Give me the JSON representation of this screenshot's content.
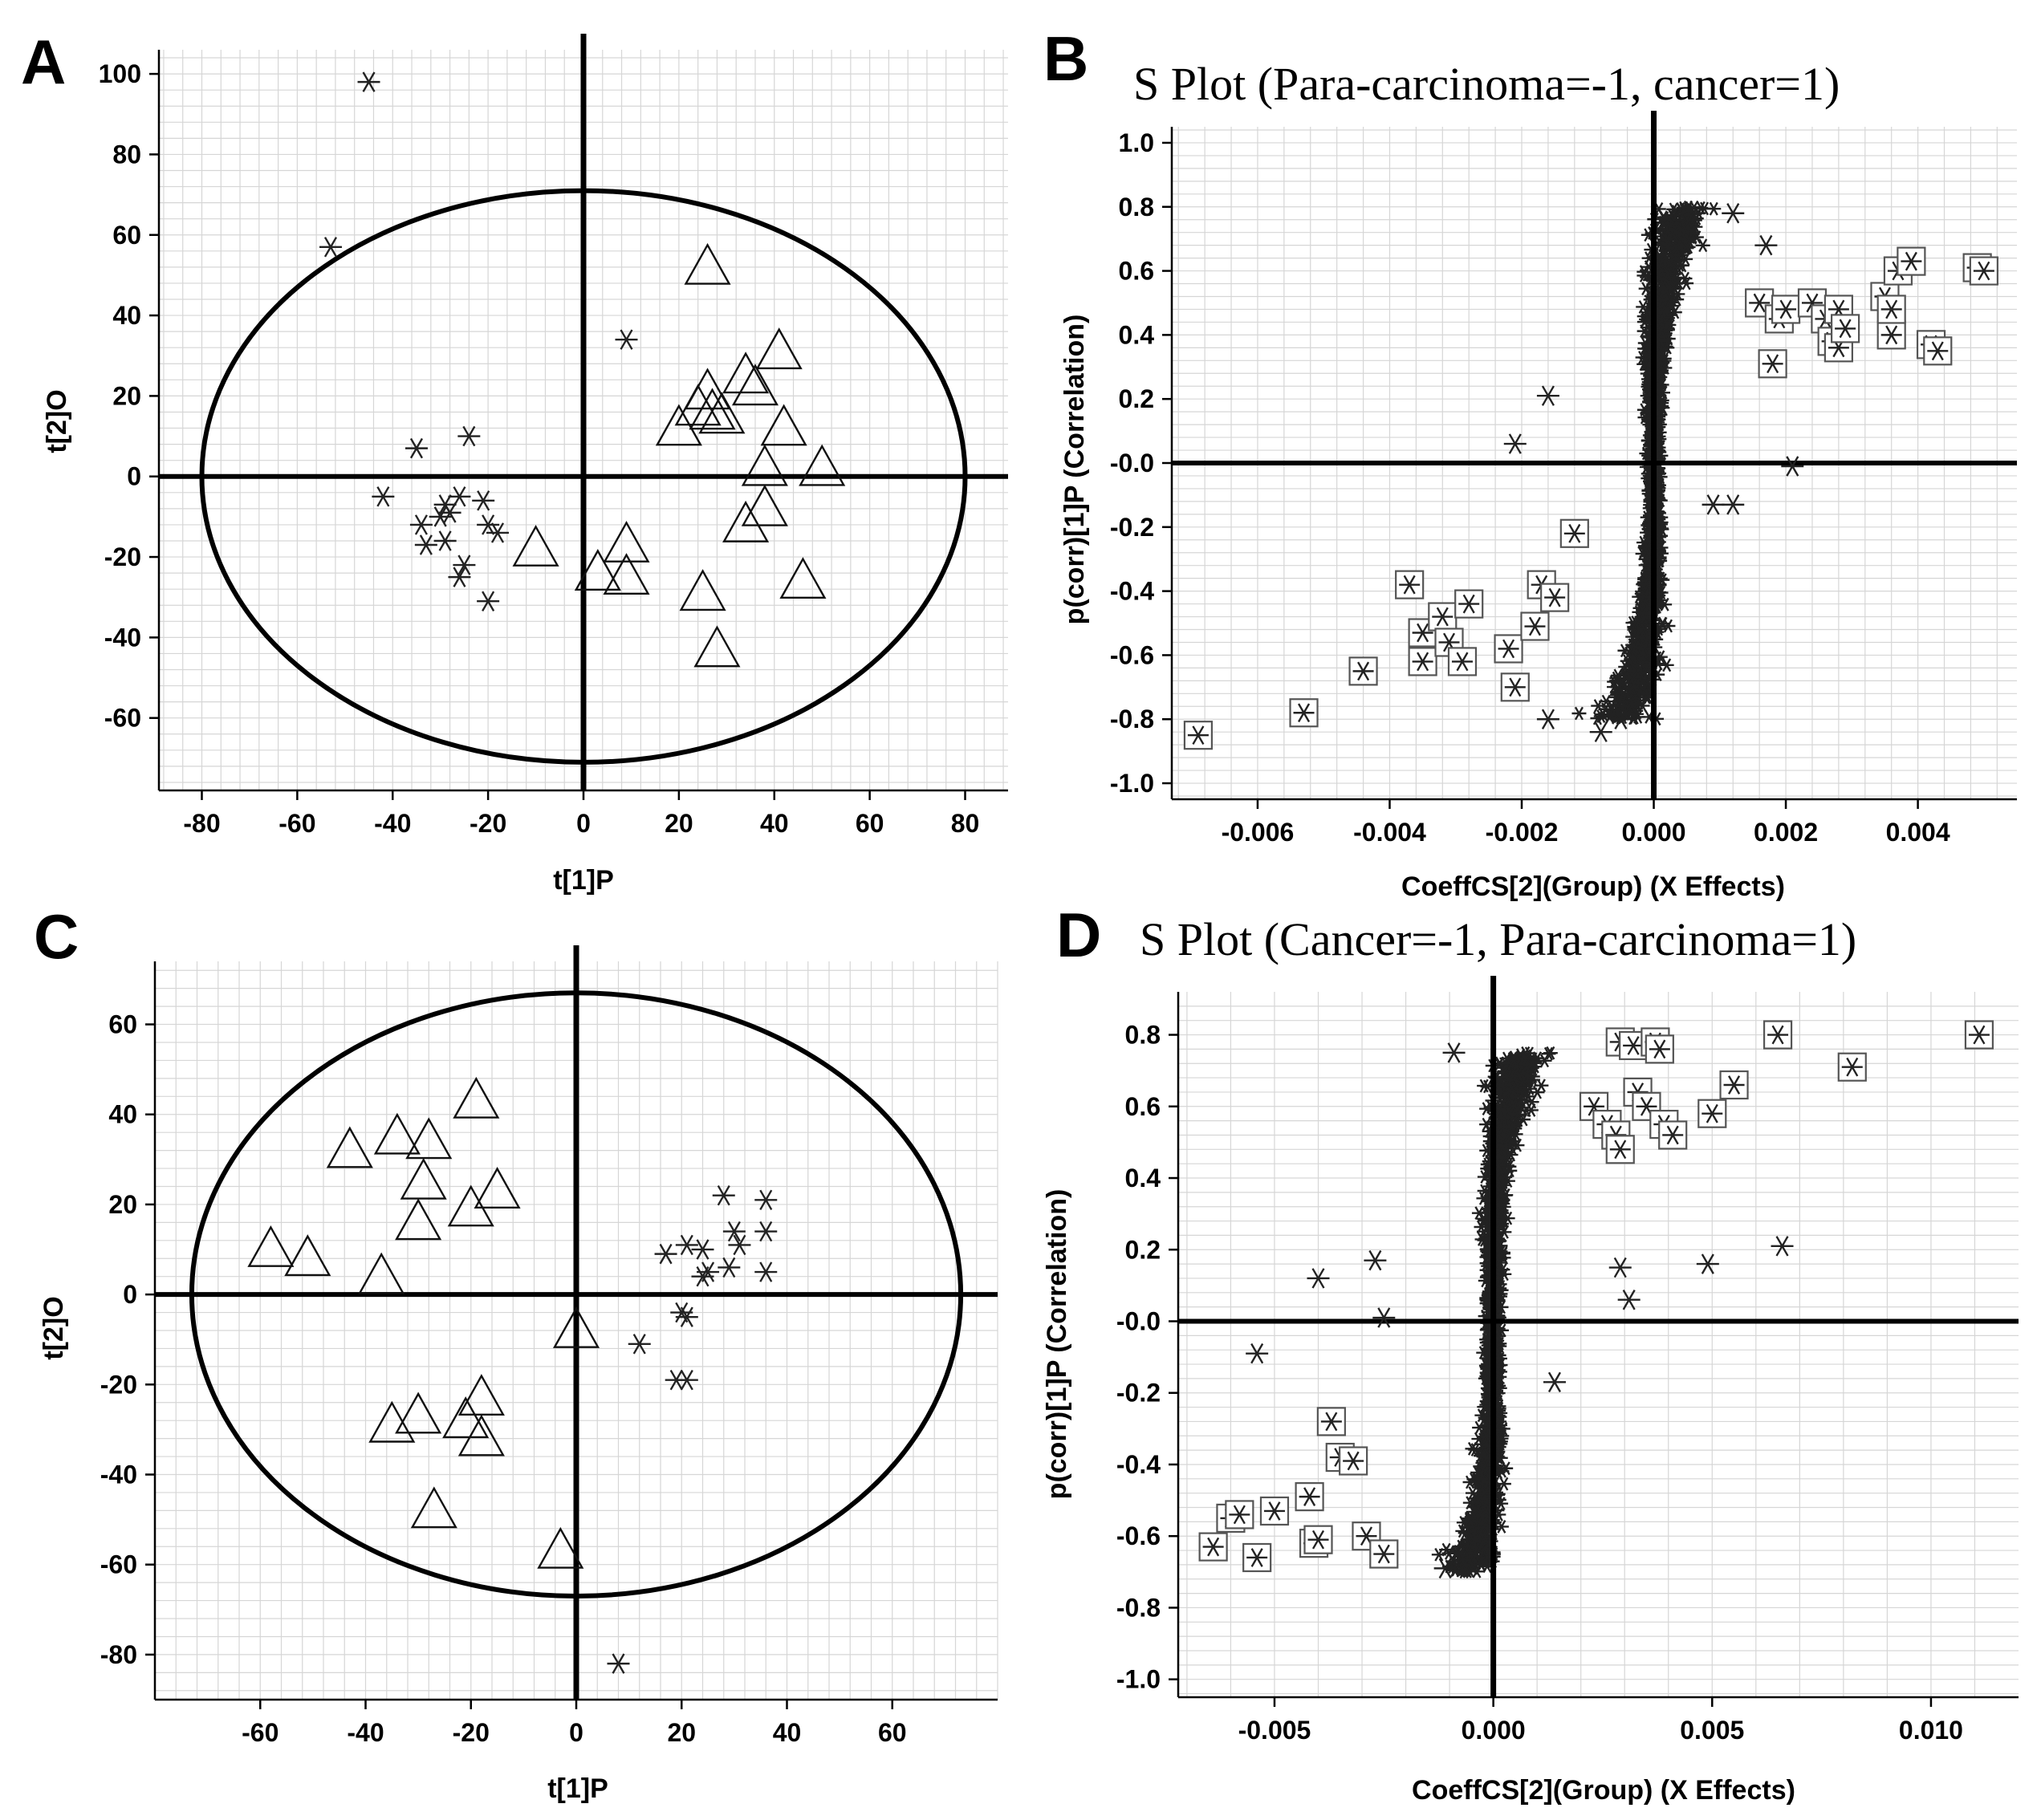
{
  "chart_data": [
    {
      "panel": "A",
      "type": "scatter",
      "title": "",
      "xlabel": "t[1]P",
      "ylabel": "t[2]O",
      "xlim": [
        -89,
        89
      ],
      "ylim": [
        -78,
        106
      ],
      "xticks": [
        -80,
        -60,
        -40,
        -20,
        0,
        20,
        40,
        60,
        80
      ],
      "xtick_labels": [
        "-80",
        "-60",
        "-40",
        "-20",
        "0",
        "20",
        "40",
        "60",
        "80"
      ],
      "yticks": [
        -60,
        -40,
        -20,
        0,
        20,
        40,
        60,
        80,
        100
      ],
      "ytick_labels": [
        "-60",
        "-40",
        "-20",
        "0",
        "20",
        "40",
        "60",
        "80",
        "100"
      ],
      "ellipse": {
        "rx": 80,
        "ry": 71
      },
      "series": [
        {
          "name": "asterisk",
          "marker": "asterisk",
          "points": [
            [
              -45,
              98
            ],
            [
              -53,
              57
            ],
            [
              9,
              34
            ],
            [
              -35,
              7
            ],
            [
              -24,
              10
            ],
            [
              -42,
              -5
            ],
            [
              -34,
              -12
            ],
            [
              -33,
              -17
            ],
            [
              -29,
              -7
            ],
            [
              -30,
              -10
            ],
            [
              -28,
              -9
            ],
            [
              -29,
              -16
            ],
            [
              -26,
              -5
            ],
            [
              -21,
              -6
            ],
            [
              -20,
              -12
            ],
            [
              -18,
              -14
            ],
            [
              -25,
              -22
            ],
            [
              -26,
              -25
            ],
            [
              -20,
              -31
            ]
          ]
        },
        {
          "name": "triangle",
          "marker": "triangle",
          "points": [
            [
              26,
              52
            ],
            [
              41,
              31
            ],
            [
              34,
              25
            ],
            [
              36,
              22
            ],
            [
              26,
              21
            ],
            [
              24,
              17
            ],
            [
              27,
              16
            ],
            [
              29,
              15
            ],
            [
              20,
              12
            ],
            [
              42,
              12
            ],
            [
              38,
              2
            ],
            [
              50,
              2
            ],
            [
              38,
              -8
            ],
            [
              34,
              -12
            ],
            [
              -10,
              -18
            ],
            [
              9,
              -17
            ],
            [
              9,
              -25
            ],
            [
              3,
              -24
            ],
            [
              46,
              -26
            ],
            [
              25,
              -29
            ],
            [
              28,
              -43
            ]
          ]
        }
      ]
    },
    {
      "panel": "B",
      "type": "scatter",
      "title": "S Plot (Para-carcinoma=-1, cancer=1)",
      "xlabel": "CoeffCS[2](Group) (X Effects)",
      "ylabel": "p(corr)[1]P (Correlation)",
      "xlim": [
        -0.0073,
        0.0055
      ],
      "ylim": [
        -1.05,
        1.05
      ],
      "xticks": [
        -0.006,
        -0.004,
        -0.002,
        0,
        0.002,
        0.004
      ],
      "xtick_labels": [
        "-0.006",
        "-0.004",
        "-0.002",
        "0.000",
        "0.002",
        "0.004"
      ],
      "yticks": [
        -1,
        -0.8,
        -0.6,
        -0.4,
        -0.2,
        0,
        0.2,
        0.4,
        0.6,
        0.8,
        1
      ],
      "ytick_labels": [
        "-1.0",
        "-0.8",
        "-0.6",
        "-0.4",
        "-0.2",
        "-0.0",
        "0.2",
        "0.4",
        "0.6",
        "0.8",
        "1.0"
      ],
      "series": [
        {
          "name": "selected",
          "marker": "boxed-asterisk",
          "points": [
            [
              -0.0069,
              -0.85
            ],
            [
              -0.0053,
              -0.78
            ],
            [
              -0.0044,
              -0.65
            ],
            [
              -0.0037,
              -0.38
            ],
            [
              -0.0035,
              -0.53
            ],
            [
              -0.0035,
              -0.62
            ],
            [
              -0.0032,
              -0.48
            ],
            [
              -0.0031,
              -0.56
            ],
            [
              -0.0029,
              -0.62
            ],
            [
              -0.0028,
              -0.44
            ],
            [
              -0.0022,
              -0.58
            ],
            [
              -0.0021,
              -0.7
            ],
            [
              -0.0018,
              -0.51
            ],
            [
              -0.0017,
              -0.38
            ],
            [
              -0.0015,
              -0.42
            ],
            [
              -0.0012,
              -0.22
            ],
            [
              0.0016,
              0.5
            ],
            [
              0.0018,
              0.31
            ],
            [
              0.0019,
              0.45
            ],
            [
              0.002,
              0.48
            ],
            [
              0.0024,
              0.5
            ],
            [
              0.0026,
              0.45
            ],
            [
              0.0027,
              0.38
            ],
            [
              0.0028,
              0.48
            ],
            [
              0.0028,
              0.36
            ],
            [
              0.0029,
              0.42
            ],
            [
              0.0035,
              0.52
            ],
            [
              0.0036,
              0.4
            ],
            [
              0.0036,
              0.48
            ],
            [
              0.0037,
              0.6
            ],
            [
              0.0039,
              0.63
            ],
            [
              0.0042,
              0.37
            ],
            [
              0.0043,
              0.35
            ],
            [
              0.0049,
              0.61
            ],
            [
              0.005,
              0.6
            ]
          ]
        },
        {
          "name": "outliers",
          "marker": "asterisk",
          "points": [
            [
              -0.0021,
              0.06
            ],
            [
              -0.0016,
              0.21
            ],
            [
              0.0012,
              0.78
            ],
            [
              0.0017,
              0.68
            ],
            [
              0.0021,
              -0.01
            ],
            [
              0.0012,
              -0.13
            ],
            [
              0.0009,
              -0.13
            ],
            [
              -0.0016,
              -0.8
            ],
            [
              -0.0008,
              -0.84
            ],
            [
              -0.0005,
              -0.8
            ]
          ]
        }
      ],
      "dense_cloud": {
        "x_range": [
          -0.0012,
          0.0012
        ],
        "y_range": [
          -0.8,
          0.8
        ],
        "description": "dense S-shaped cluster of asterisks along the vertical axis"
      }
    },
    {
      "panel": "C",
      "type": "scatter",
      "title": "",
      "xlabel": "t[1]P",
      "ylabel": "t[2]O",
      "xlim": [
        -80,
        80
      ],
      "ylim": [
        -90,
        74
      ],
      "xticks": [
        -60,
        -40,
        -20,
        0,
        20,
        40,
        60
      ],
      "xtick_labels": [
        "-60",
        "-40",
        "-20",
        "0",
        "20",
        "40",
        "60"
      ],
      "yticks": [
        -80,
        -60,
        -40,
        -20,
        0,
        20,
        40,
        60
      ],
      "ytick_labels": [
        "-80",
        "-60",
        "-40",
        "-20",
        "0",
        "20",
        "40",
        "60"
      ],
      "ellipse": {
        "rx": 73,
        "ry": 67
      },
      "series": [
        {
          "name": "triangle",
          "marker": "triangle",
          "points": [
            [
              -19,
              43
            ],
            [
              -34,
              35
            ],
            [
              -28,
              34
            ],
            [
              -43,
              32
            ],
            [
              -29,
              25
            ],
            [
              -15,
              23
            ],
            [
              -20,
              19
            ],
            [
              -30,
              16
            ],
            [
              -58,
              10
            ],
            [
              -51,
              8
            ],
            [
              -37,
              4
            ],
            [
              0,
              -8
            ],
            [
              -35,
              -29
            ],
            [
              -30,
              -27
            ],
            [
              -18,
              -23
            ],
            [
              -21,
              -28
            ],
            [
              -18,
              -32
            ],
            [
              -27,
              -48
            ],
            [
              -3,
              -57
            ]
          ]
        },
        {
          "name": "asterisk",
          "marker": "asterisk",
          "points": [
            [
              28,
              22
            ],
            [
              36,
              21
            ],
            [
              30,
              14
            ],
            [
              36,
              14
            ],
            [
              24,
              10
            ],
            [
              17,
              9
            ],
            [
              21,
              11
            ],
            [
              31,
              11
            ],
            [
              24,
              4
            ],
            [
              29,
              6
            ],
            [
              25,
              5
            ],
            [
              36,
              5
            ],
            [
              20,
              -4
            ],
            [
              21,
              -5
            ],
            [
              12,
              -11
            ],
            [
              19,
              -19
            ],
            [
              21,
              -19
            ],
            [
              8,
              -82
            ]
          ]
        }
      ]
    },
    {
      "panel": "D",
      "type": "scatter",
      "title": "S Plot (Cancer=-1, Para-carcinoma=1)",
      "xlabel": "CoeffCS[2](Group) (X Effects)",
      "ylabel": "p(corr)[1]P (Correlation)",
      "xlim": [
        -0.0072,
        0.012
      ],
      "ylim": [
        -1.05,
        0.92
      ],
      "xticks": [
        -0.005,
        0,
        0.005,
        0.01
      ],
      "xtick_labels": [
        "-0.005",
        "0.000",
        "0.005",
        "0.010"
      ],
      "yticks": [
        -1,
        -0.8,
        -0.6,
        -0.4,
        -0.2,
        0,
        0.2,
        0.4,
        0.6,
        0.8
      ],
      "ytick_labels": [
        "-1.0",
        "-0.8",
        "-0.6",
        "-0.4",
        "-0.2",
        "-0.0",
        "0.2",
        "0.4",
        "0.6",
        "0.8"
      ],
      "series": [
        {
          "name": "selected",
          "marker": "boxed-asterisk",
          "points": [
            [
              -0.0064,
              -0.63
            ],
            [
              -0.006,
              -0.55
            ],
            [
              -0.0058,
              -0.54
            ],
            [
              -0.0054,
              -0.66
            ],
            [
              -0.005,
              -0.53
            ],
            [
              -0.0042,
              -0.49
            ],
            [
              -0.0041,
              -0.62
            ],
            [
              -0.004,
              -0.61
            ],
            [
              -0.0037,
              -0.28
            ],
            [
              -0.0035,
              -0.38
            ],
            [
              -0.0032,
              -0.39
            ],
            [
              -0.0029,
              -0.6
            ],
            [
              -0.0025,
              -0.65
            ],
            [
              0.0023,
              0.6
            ],
            [
              0.0026,
              0.55
            ],
            [
              0.0028,
              0.52
            ],
            [
              0.0029,
              0.48
            ],
            [
              0.0029,
              0.78
            ],
            [
              0.0032,
              0.77
            ],
            [
              0.0033,
              0.64
            ],
            [
              0.0035,
              0.6
            ],
            [
              0.0037,
              0.78
            ],
            [
              0.0038,
              0.76
            ],
            [
              0.0039,
              0.55
            ],
            [
              0.0041,
              0.52
            ],
            [
              0.005,
              0.58
            ],
            [
              0.0055,
              0.66
            ],
            [
              0.0065,
              0.8
            ],
            [
              0.0082,
              0.71
            ],
            [
              0.0111,
              0.8
            ]
          ]
        },
        {
          "name": "outliers",
          "marker": "asterisk",
          "points": [
            [
              -0.0054,
              -0.09
            ],
            [
              -0.004,
              0.12
            ],
            [
              -0.0027,
              0.17
            ],
            [
              -0.0025,
              0.01
            ],
            [
              -0.0011,
              -0.69
            ],
            [
              -0.0009,
              0.75
            ],
            [
              0.0014,
              -0.17
            ],
            [
              0.0029,
              0.15
            ],
            [
              0.0031,
              0.06
            ],
            [
              0.0049,
              0.16
            ],
            [
              0.0066,
              0.21
            ]
          ]
        }
      ],
      "dense_cloud": {
        "x_range": [
          -0.0012,
          0.002
        ],
        "y_range": [
          -0.7,
          0.75
        ],
        "description": "dense S-shaped cluster of asterisks along the vertical axis"
      }
    }
  ]
}
